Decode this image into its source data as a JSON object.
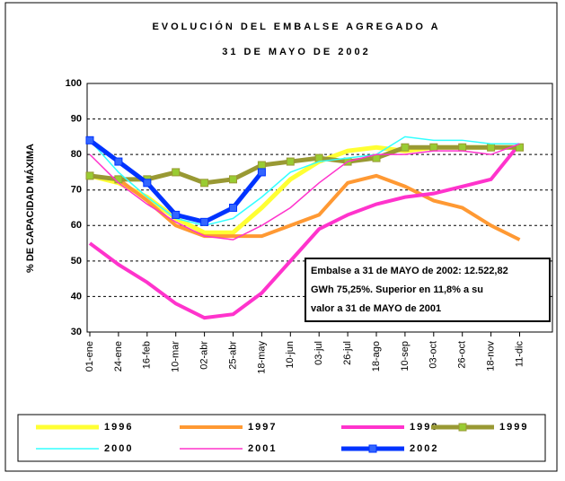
{
  "chart_data": {
    "type": "line",
    "title": "EVOLUCIÓN DEL EMBALSE AGREGADO A",
    "subtitle": "31 DE MAYO DE 2002",
    "y_label": "% DE CAPACIDAD MÁXIMA",
    "annotation": [
      "Embalse a 31 de MAYO de 2002: 12.522,82",
      "GWh 75,25%. Superior en 11,8% a su",
      "valor a 31 de MAYO de 2001"
    ],
    "categories": [
      "01-ene",
      "24-ene",
      "16-feb",
      "10-mar",
      "02-abr",
      "25-abr",
      "18-may",
      "10-jun",
      "03-jul",
      "26-jul",
      "18-ago",
      "10-sep",
      "03-oct",
      "26-oct",
      "18-nov",
      "11-dic"
    ],
    "ylim": [
      30,
      100
    ],
    "yticks": [
      30,
      40,
      50,
      60,
      70,
      80,
      90,
      100
    ],
    "grid": true,
    "legend": "bottom",
    "series": [
      {
        "name": "1996",
        "color": "#ffff33",
        "width": 5,
        "values": [
          74,
          72,
          68,
          62,
          58,
          58,
          65,
          73,
          78,
          81,
          82,
          81,
          82,
          82,
          82,
          82
        ]
      },
      {
        "name": "1997",
        "color": "#ff9933",
        "width": 4,
        "values": [
          74,
          73,
          67,
          60,
          57,
          57,
          57,
          60,
          63,
          72,
          74,
          71,
          67,
          65,
          60,
          56
        ]
      },
      {
        "name": "1998",
        "color": "#ff33cc",
        "width": 4,
        "values": [
          55,
          49,
          44,
          38,
          34,
          35,
          41,
          50,
          59,
          63,
          66,
          68,
          69,
          71,
          73,
          83
        ]
      },
      {
        "name": "1999",
        "color": "#999933",
        "width": 5,
        "marker": "#99cc33",
        "values": [
          74,
          73,
          73,
          75,
          72,
          73,
          77,
          78,
          79,
          78,
          79,
          82,
          82,
          82,
          82,
          82
        ]
      },
      {
        "name": "2000",
        "color": "#33ffff",
        "width": 1.5,
        "values": [
          84,
          75,
          68,
          62,
          60,
          62,
          68,
          75,
          78,
          79,
          80,
          85,
          84,
          84,
          83,
          83
        ]
      },
      {
        "name": "2001",
        "color": "#ff33cc",
        "width": 1.5,
        "values": [
          80,
          72,
          66,
          61,
          57,
          56,
          60,
          65,
          72,
          78,
          80,
          80,
          81,
          81,
          80,
          83
        ]
      },
      {
        "name": "2002",
        "color": "#0033ff",
        "width": 5,
        "marker": "#3366ff",
        "values": [
          84,
          78,
          72,
          63,
          61,
          65,
          75,
          null,
          null,
          null,
          null,
          null,
          null,
          null,
          null,
          null
        ]
      }
    ]
  }
}
